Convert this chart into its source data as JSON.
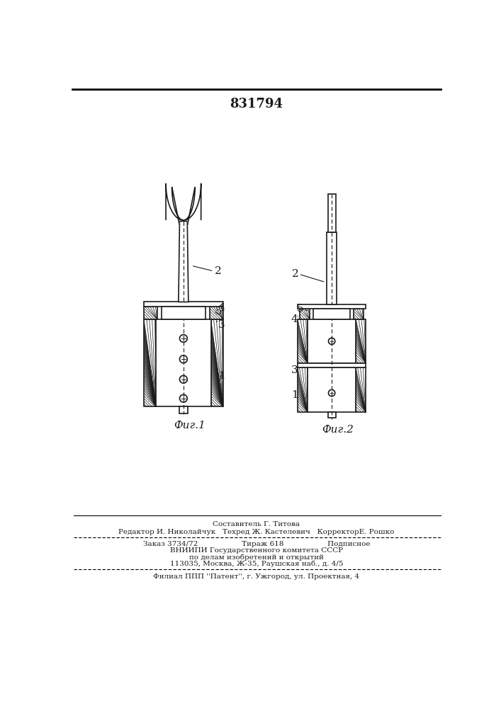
{
  "patent_number": "831794",
  "fig1_label": "Фиг.1",
  "fig2_label": "Фиг.2",
  "background_color": "#ffffff",
  "line_color": "#1a1a1a",
  "footer_lines": [
    "Составитель Г. Титова",
    "Редактор И. Николайчук   Техред Ж. Кастелевич   КорректорЕ. Рошко",
    "Заказ 3734/72                   Тираж 618                   Подписное",
    "ВНИИПИ Государственного комитета СССР",
    "по делам изобретений и открытий",
    "113035, Москва, Ж-35, Раушская наб., д. 4/5",
    "Филиал ППП ''Патент'', г. Ужгород, ул. Проектная, 4"
  ]
}
